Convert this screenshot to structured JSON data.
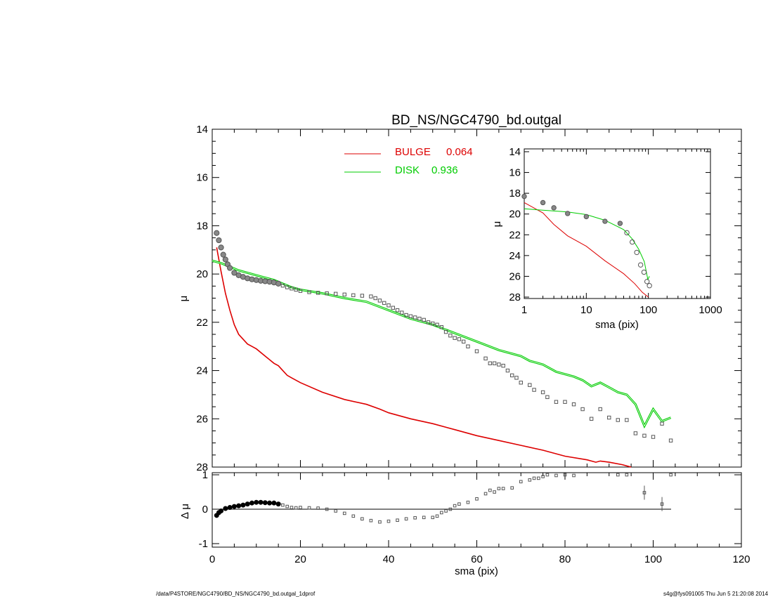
{
  "chart_data": [
    {
      "type": "scatter",
      "title": "BD_NS/NGC4790_bd.outgal",
      "ylabel": "μ",
      "xlim": [
        0,
        120
      ],
      "ylim": [
        28,
        14
      ],
      "x_ticks": [
        "0",
        "20",
        "40",
        "60",
        "80",
        "100",
        "120"
      ],
      "y_ticks": [
        "14",
        "16",
        "18",
        "20",
        "22",
        "24",
        "26",
        "28"
      ],
      "legend": [
        {
          "label": "BULGE",
          "value": "0.064",
          "color": "#dd0000"
        },
        {
          "label": "DISK",
          "value": "0.936",
          "color": "#00cc00"
        }
      ],
      "series": [
        {
          "name": "BULGE",
          "color": "#dd0000",
          "points": [
            [
              1,
              18.9
            ],
            [
              2,
              19.9
            ],
            [
              3,
              20.8
            ],
            [
              4,
              21.5
            ],
            [
              5,
              22.1
            ],
            [
              6,
              22.5
            ],
            [
              7,
              22.7
            ],
            [
              8,
              22.9
            ],
            [
              9,
              23.0
            ],
            [
              10,
              23.1
            ],
            [
              12,
              23.4
            ],
            [
              14,
              23.7
            ],
            [
              15,
              23.8
            ],
            [
              16,
              24.0
            ],
            [
              17,
              24.2
            ],
            [
              18,
              24.3
            ],
            [
              20,
              24.5
            ],
            [
              25,
              24.9
            ],
            [
              30,
              25.2
            ],
            [
              35,
              25.4
            ],
            [
              38,
              25.6
            ],
            [
              40,
              25.75
            ],
            [
              45,
              26.0
            ],
            [
              50,
              26.2
            ],
            [
              55,
              26.45
            ],
            [
              60,
              26.7
            ],
            [
              65,
              26.9
            ],
            [
              70,
              27.1
            ],
            [
              75,
              27.3
            ],
            [
              80,
              27.55
            ],
            [
              85,
              27.7
            ],
            [
              87,
              27.8
            ],
            [
              88,
              27.75
            ],
            [
              90,
              27.8
            ],
            [
              93,
              27.9
            ],
            [
              95,
              28.0
            ]
          ]
        },
        {
          "name": "DISK",
          "color": "#00cc00",
          "points": [
            [
              0,
              19.45
            ],
            [
              2,
              19.55
            ],
            [
              4,
              19.7
            ],
            [
              6,
              19.85
            ],
            [
              8,
              19.95
            ],
            [
              10,
              20.05
            ],
            [
              12,
              20.15
            ],
            [
              14,
              20.25
            ],
            [
              16,
              20.4
            ],
            [
              18,
              20.55
            ],
            [
              20,
              20.65
            ],
            [
              25,
              20.8
            ],
            [
              30,
              21.0
            ],
            [
              35,
              21.15
            ],
            [
              40,
              21.5
            ],
            [
              45,
              21.85
            ],
            [
              50,
              22.1
            ],
            [
              55,
              22.45
            ],
            [
              60,
              22.8
            ],
            [
              65,
              23.15
            ],
            [
              70,
              23.4
            ],
            [
              72,
              23.6
            ],
            [
              75,
              23.75
            ],
            [
              78,
              24.05
            ],
            [
              82,
              24.25
            ],
            [
              84,
              24.4
            ],
            [
              86,
              24.65
            ],
            [
              88,
              24.5
            ],
            [
              90,
              24.7
            ],
            [
              92,
              24.9
            ],
            [
              94,
              25.0
            ],
            [
              96,
              25.4
            ],
            [
              98,
              26.3
            ],
            [
              100,
              25.6
            ],
            [
              102,
              26.1
            ],
            [
              104,
              25.95
            ]
          ]
        }
      ],
      "data_points": [
        [
          1,
          18.3
        ],
        [
          1.5,
          18.6
        ],
        [
          2,
          18.9
        ],
        [
          2.5,
          19.2
        ],
        [
          3,
          19.4
        ],
        [
          3.5,
          19.6
        ],
        [
          4,
          19.75
        ],
        [
          5,
          19.95
        ],
        [
          6,
          20.05
        ],
        [
          7,
          20.12
        ],
        [
          8,
          20.18
        ],
        [
          9,
          20.22
        ],
        [
          10,
          20.25
        ],
        [
          11,
          20.28
        ],
        [
          12,
          20.3
        ],
        [
          13,
          20.32
        ],
        [
          14,
          20.35
        ],
        [
          15,
          20.4
        ],
        [
          16,
          20.48
        ],
        [
          17,
          20.55
        ],
        [
          18,
          20.6
        ],
        [
          19,
          20.65
        ],
        [
          20,
          20.7
        ],
        [
          22,
          20.75
        ],
        [
          24,
          20.78
        ],
        [
          26,
          20.8
        ],
        [
          28,
          20.82
        ],
        [
          30,
          20.85
        ],
        [
          32,
          20.88
        ],
        [
          34,
          20.9
        ],
        [
          36,
          20.93
        ],
        [
          37,
          21.0
        ],
        [
          38,
          21.1
        ],
        [
          39,
          21.2
        ],
        [
          40,
          21.3
        ],
        [
          41,
          21.4
        ],
        [
          42,
          21.5
        ],
        [
          43,
          21.6
        ],
        [
          44,
          21.7
        ],
        [
          45,
          21.75
        ],
        [
          46,
          21.8
        ],
        [
          47,
          21.85
        ],
        [
          48,
          21.9
        ],
        [
          49,
          22.0
        ],
        [
          50,
          22.05
        ],
        [
          51,
          22.1
        ],
        [
          52,
          22.2
        ],
        [
          53,
          22.4
        ],
        [
          54,
          22.55
        ],
        [
          55,
          22.65
        ],
        [
          56,
          22.7
        ],
        [
          57,
          22.8
        ],
        [
          58,
          23.0
        ],
        [
          60,
          23.2
        ],
        [
          62,
          23.5
        ],
        [
          63,
          23.7
        ],
        [
          64,
          23.7
        ],
        [
          65,
          23.75
        ],
        [
          66,
          23.8
        ],
        [
          67,
          24.0
        ],
        [
          68,
          24.2
        ],
        [
          69,
          24.3
        ],
        [
          70,
          24.5
        ],
        [
          72,
          24.6
        ],
        [
          73,
          24.8
        ],
        [
          75,
          24.9
        ],
        [
          76,
          25.1
        ],
        [
          78,
          25.3
        ],
        [
          80,
          25.3
        ],
        [
          82,
          25.4
        ],
        [
          84,
          25.6
        ],
        [
          86,
          26.0
        ],
        [
          88,
          25.6
        ],
        [
          90,
          25.95
        ],
        [
          92,
          26.05
        ],
        [
          94,
          26.05
        ],
        [
          96,
          26.6
        ],
        [
          98,
          26.7
        ],
        [
          100,
          26.75
        ],
        [
          102,
          26.2
        ],
        [
          104,
          26.9
        ]
      ]
    },
    {
      "type": "scatter",
      "ylabel": "Δ μ",
      "xlabel": "sma (pix)",
      "xlim": [
        0,
        120
      ],
      "ylim": [
        -1,
        1
      ],
      "x_ticks": [
        "0",
        "20",
        "40",
        "60",
        "80",
        "100",
        "120"
      ],
      "y_ticks": [
        "1",
        "0",
        "-1"
      ],
      "residuals": [
        [
          1,
          -0.18
        ],
        [
          1.5,
          -0.1
        ],
        [
          2,
          -0.05
        ],
        [
          3,
          0.02
        ],
        [
          4,
          0.05
        ],
        [
          5,
          0.08
        ],
        [
          6,
          0.1
        ],
        [
          7,
          0.12
        ],
        [
          8,
          0.15
        ],
        [
          9,
          0.18
        ],
        [
          10,
          0.2
        ],
        [
          11,
          0.2
        ],
        [
          12,
          0.19
        ],
        [
          13,
          0.18
        ],
        [
          14,
          0.18
        ],
        [
          15,
          0.15
        ],
        [
          16,
          0.12
        ],
        [
          17,
          0.08
        ],
        [
          18,
          0.05
        ],
        [
          19,
          0.04
        ],
        [
          20,
          0.05
        ],
        [
          22,
          0.04
        ],
        [
          24,
          0.03
        ],
        [
          26,
          0.0
        ],
        [
          28,
          -0.05
        ],
        [
          30,
          -0.12
        ],
        [
          32,
          -0.2
        ],
        [
          34,
          -0.28
        ],
        [
          36,
          -0.33
        ],
        [
          38,
          -0.37
        ],
        [
          40,
          -0.35
        ],
        [
          42,
          -0.32
        ],
        [
          44,
          -0.28
        ],
        [
          46,
          -0.25
        ],
        [
          48,
          -0.24
        ],
        [
          50,
          -0.24
        ],
        [
          51,
          -0.2
        ],
        [
          52,
          -0.1
        ],
        [
          53,
          -0.05
        ],
        [
          54,
          0.0
        ],
        [
          55,
          0.1
        ],
        [
          56,
          0.15
        ],
        [
          58,
          0.2
        ],
        [
          60,
          0.3
        ],
        [
          62,
          0.45
        ],
        [
          63,
          0.55
        ],
        [
          64,
          0.5
        ],
        [
          65,
          0.6
        ],
        [
          66,
          0.6
        ],
        [
          68,
          0.62
        ],
        [
          70,
          0.8
        ],
        [
          72,
          0.85
        ],
        [
          73,
          0.9
        ],
        [
          74,
          0.9
        ],
        [
          75,
          0.95
        ],
        [
          76,
          1.0
        ],
        [
          78,
          0.98
        ],
        [
          80,
          1.0
        ],
        [
          82,
          0.98
        ],
        [
          92,
          1.0
        ],
        [
          94,
          1.0
        ],
        [
          98,
          0.48
        ],
        [
          102,
          0.15
        ],
        [
          104,
          1.0
        ]
      ]
    },
    {
      "type": "scatter",
      "ylabel": "μ",
      "xlabel": "sma (pix)",
      "xscale": "log",
      "xlim": [
        1,
        1000
      ],
      "ylim": [
        28,
        14
      ],
      "x_ticks": [
        "1",
        "10",
        "100",
        "1000"
      ],
      "y_ticks": [
        "14",
        "16",
        "18",
        "20",
        "22",
        "24",
        "26",
        "28"
      ],
      "series": [
        {
          "name": "BULGE",
          "color": "#dd0000",
          "points": [
            [
              1,
              18.9
            ],
            [
              2,
              19.9
            ],
            [
              3,
              21.0
            ],
            [
              5,
              22.1
            ],
            [
              10,
              23.1
            ],
            [
              20,
              24.5
            ],
            [
              40,
              25.75
            ],
            [
              60,
              26.7
            ],
            [
              80,
              27.55
            ],
            [
              100,
              28.0
            ]
          ]
        },
        {
          "name": "DISK",
          "color": "#00cc00",
          "points": [
            [
              1,
              19.5
            ],
            [
              5,
              19.8
            ],
            [
              10,
              20.05
            ],
            [
              20,
              20.6
            ],
            [
              40,
              21.5
            ],
            [
              55,
              22.4
            ],
            [
              70,
              23.4
            ],
            [
              86,
              24.6
            ],
            [
              98,
              26.3
            ],
            [
              104,
              26.0
            ]
          ]
        }
      ],
      "data_points": [
        [
          1,
          18.3
        ],
        [
          2,
          18.9
        ],
        [
          3,
          19.4
        ],
        [
          5,
          19.95
        ],
        [
          10,
          20.25
        ],
        [
          20,
          20.7
        ],
        [
          35,
          20.9
        ],
        [
          45,
          21.8
        ],
        [
          55,
          22.7
        ],
        [
          65,
          23.7
        ],
        [
          75,
          24.9
        ],
        [
          85,
          25.6
        ],
        [
          95,
          26.5
        ],
        [
          104,
          26.9
        ]
      ]
    }
  ],
  "footer": {
    "left": "/data/P4STORE/NGC4790/BD_NS/NGC4790_bd.outgal_1dprof",
    "right": "s4g@fys091005  Thu Jun  5 21:20:08 2014"
  }
}
